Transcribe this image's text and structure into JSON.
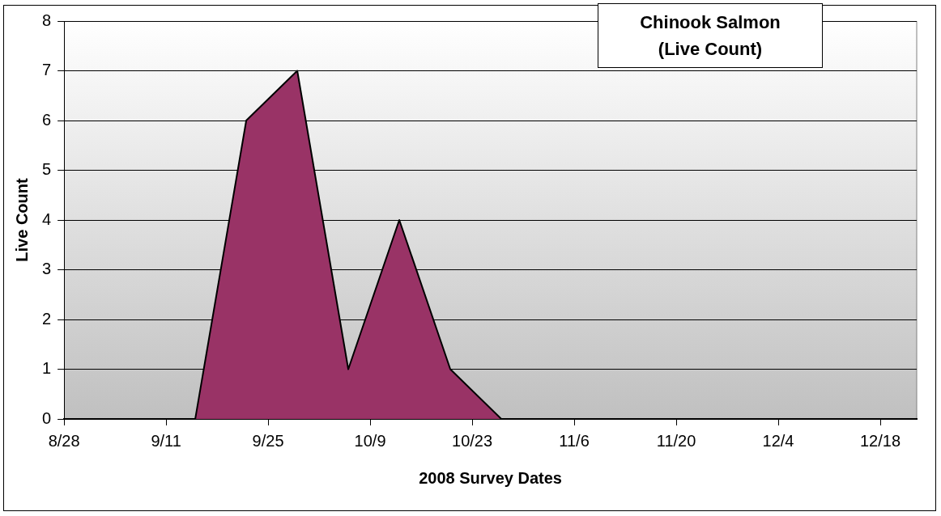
{
  "chart_data": {
    "type": "area",
    "title": "Chinook Salmon (Live Count)",
    "xlabel": "2008 Survey Dates",
    "ylabel": "Live Count",
    "x": [
      "2008-09-01",
      "2008-09-08",
      "2008-09-15",
      "2008-09-22",
      "2008-09-29",
      "2008-10-06",
      "2008-10-13",
      "2008-10-20",
      "2008-10-27",
      "2008-11-03",
      "2008-11-10",
      "2008-11-17",
      "2008-11-24",
      "2008-12-01",
      "2008-12-08",
      "2008-12-15",
      "2008-12-22"
    ],
    "series": [
      {
        "color": "#993366",
        "values": [
          0,
          0,
          0,
          6,
          7,
          1,
          4,
          1,
          0,
          0,
          0,
          0,
          0,
          0,
          0,
          0,
          0
        ]
      }
    ],
    "xlim": [
      "2008-08-28",
      "2008-12-23"
    ],
    "xticks": [
      {
        "value": "2008-08-28",
        "label": "8/28"
      },
      {
        "value": "2008-09-11",
        "label": "9/11"
      },
      {
        "value": "2008-09-25",
        "label": "9/25"
      },
      {
        "value": "2008-10-09",
        "label": "10/9"
      },
      {
        "value": "2008-10-23",
        "label": "10/23"
      },
      {
        "value": "2008-11-06",
        "label": "11/6"
      },
      {
        "value": "2008-11-20",
        "label": "11/20"
      },
      {
        "value": "2008-12-04",
        "label": "12/4"
      },
      {
        "value": "2008-12-18",
        "label": "12/18"
      }
    ],
    "ylim": [
      0,
      8
    ],
    "yticks": [
      0,
      1,
      2,
      3,
      4,
      5,
      6,
      7,
      8
    ],
    "grid": "y",
    "legend": false
  }
}
